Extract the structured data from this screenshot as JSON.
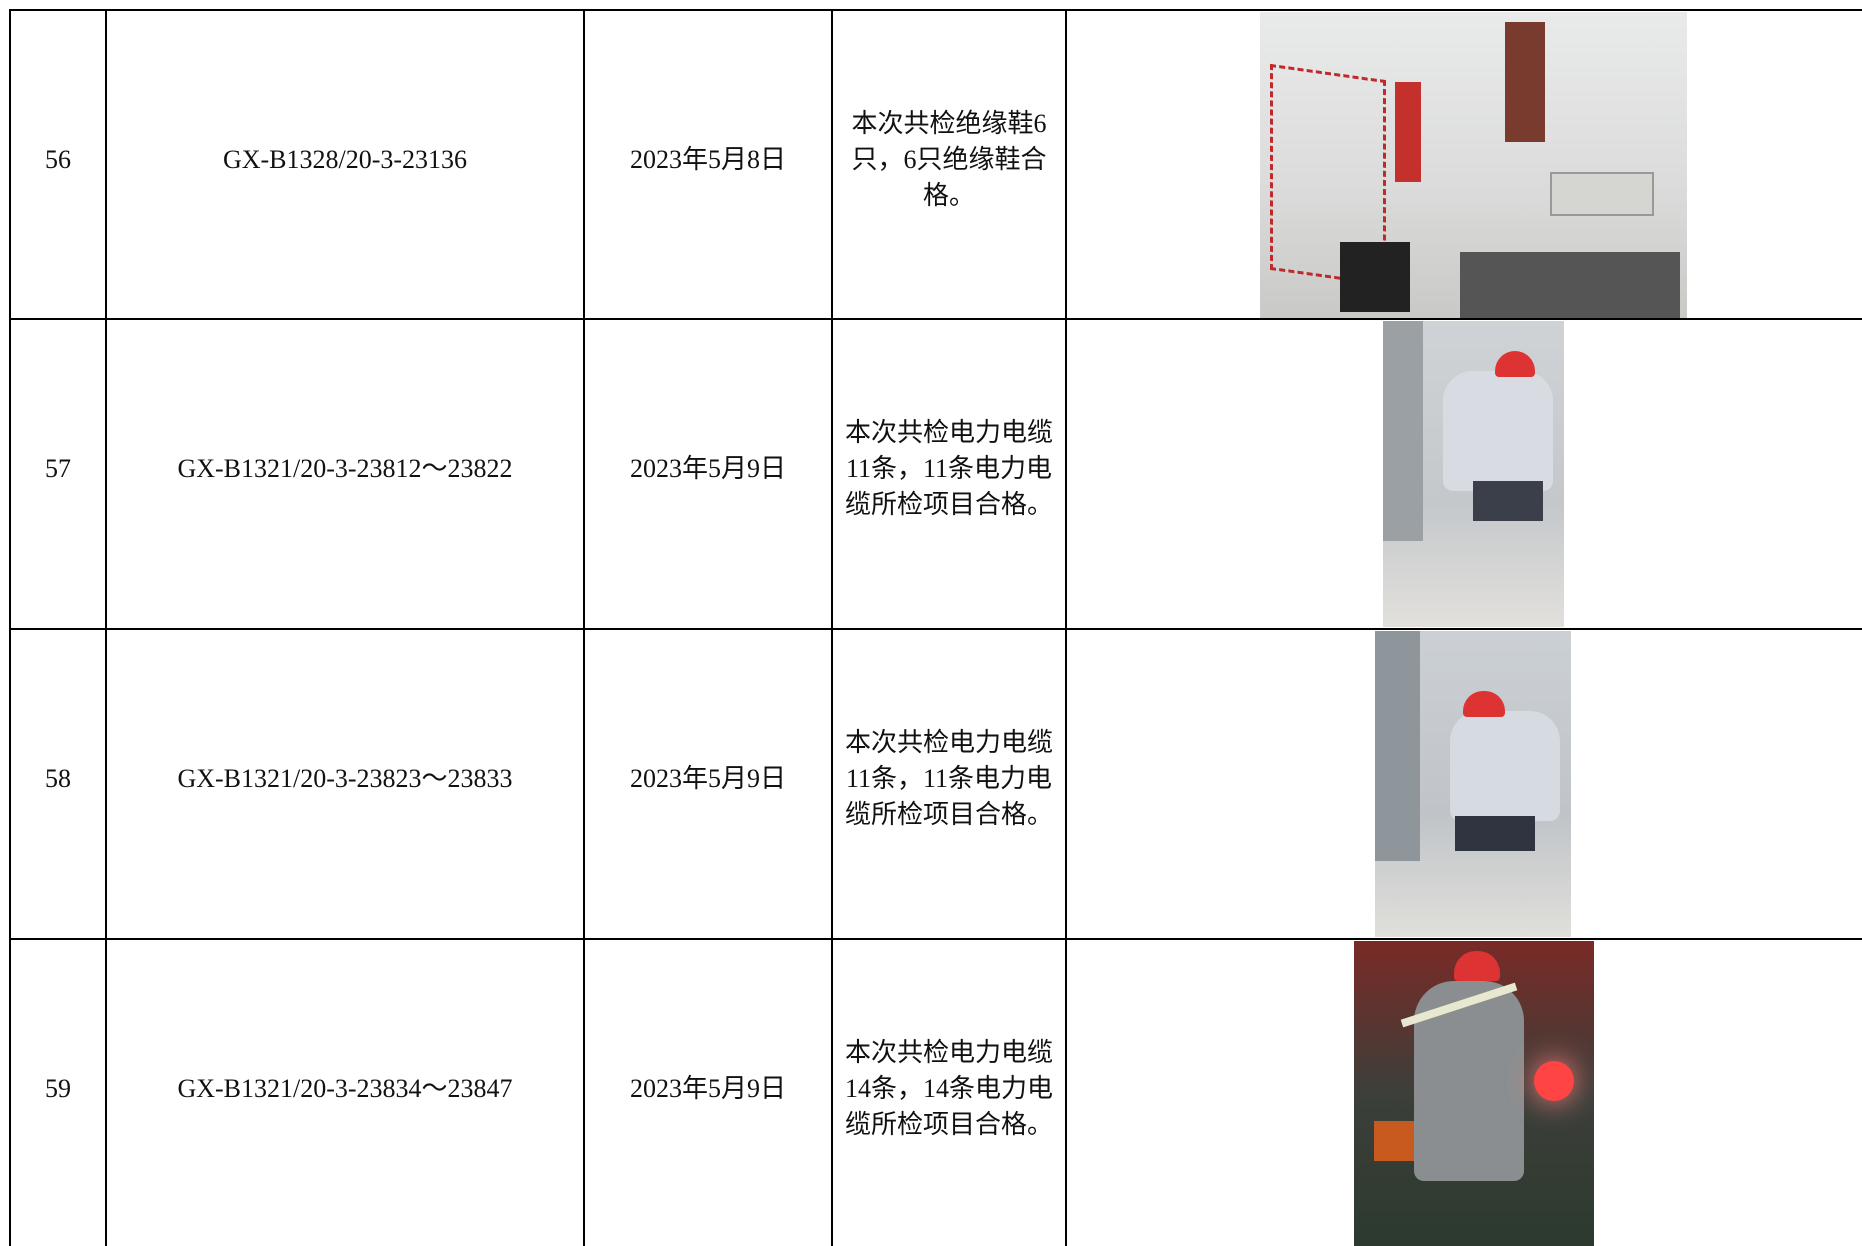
{
  "table": {
    "rows": [
      [
        "56",
        "GX-B1328/20-3-23136",
        "2023年5月8日",
        "本次共检绝缘鞋6只，6只绝缘鞋合格。"
      ],
      [
        "57",
        "GX-B1321/20-3-23812～23822",
        "2023年5月9日",
        "本次共检电力电缆11条，11条电力电缆所检项目合格。"
      ],
      [
        "58",
        "GX-B1321/20-3-23823～23833",
        "2023年5月9日",
        "本次共检电力电缆11条，11条电力电缆所检项目合格。"
      ],
      [
        "59",
        "GX-B1321/20-3-23834～23847",
        "2023年5月9日",
        "本次共检电力电缆14条，14条电力电缆所检项目合格。"
      ]
    ]
  }
}
